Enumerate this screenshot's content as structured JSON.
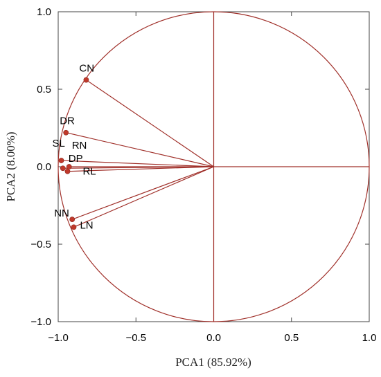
{
  "chart_data": {
    "type": "scatter",
    "xlabel": "PCA1 (85.92%)",
    "ylabel": "PCA2 (8.00%)",
    "xlim": [
      -1.0,
      1.0
    ],
    "ylim": [
      -1.0,
      1.0
    ],
    "x_ticks": [
      "−1.0",
      "−0.5",
      "0.0",
      "0.5",
      "1.0"
    ],
    "y_ticks": [
      "1.0",
      "0.5",
      "0.0",
      "−0.5",
      "−1.0"
    ],
    "grid": false,
    "unit_circle": true,
    "line_color": "#a0302a",
    "point_color": "#c0392b",
    "points": [
      {
        "label": "CN",
        "x": -0.82,
        "y": 0.56
      },
      {
        "label": "DR",
        "x": -0.95,
        "y": 0.22
      },
      {
        "label": "SL",
        "x": -0.98,
        "y": 0.04
      },
      {
        "label": "RN",
        "x": -0.93,
        "y": 0.0
      },
      {
        "label": "DP",
        "x": -0.97,
        "y": -0.01
      },
      {
        "label": "RL",
        "x": -0.94,
        "y": -0.03
      },
      {
        "label": "NN",
        "x": -0.91,
        "y": -0.34
      },
      {
        "label": "LN",
        "x": -0.9,
        "y": -0.39
      }
    ]
  }
}
